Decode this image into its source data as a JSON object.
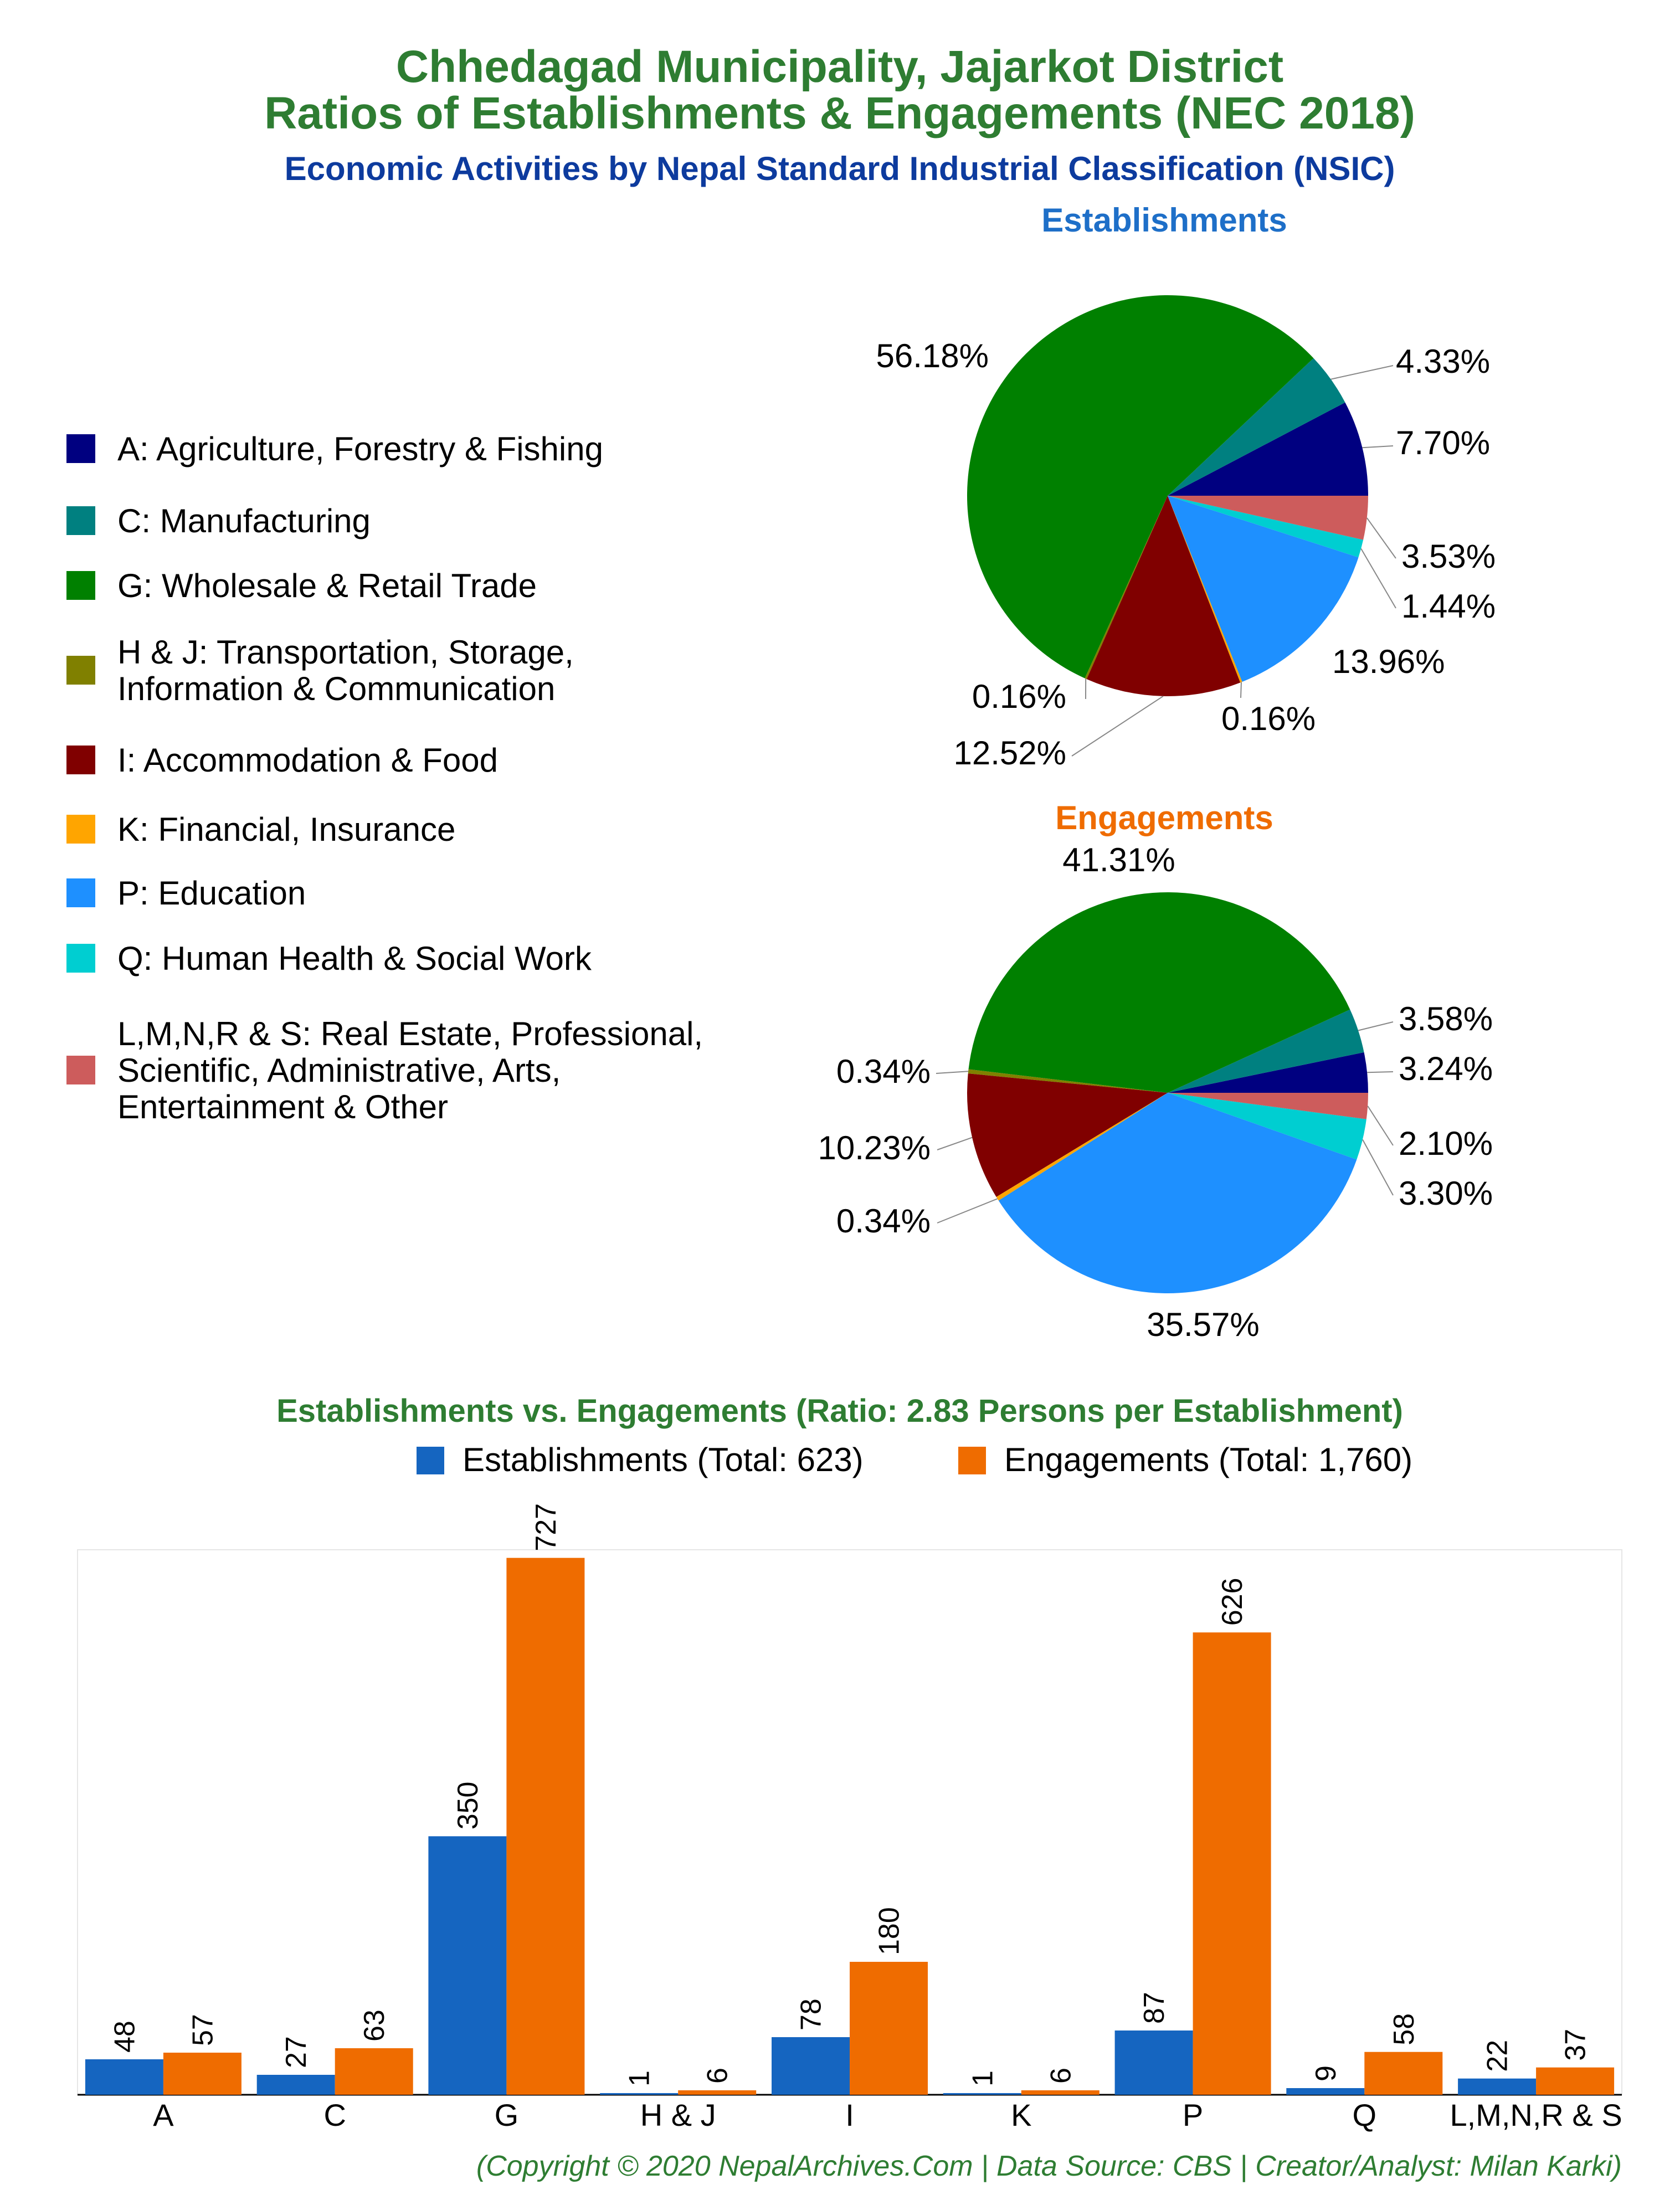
{
  "header": {
    "title_line1": "Chhedagad Municipality, Jajarkot District",
    "title_line2": "Ratios of Establishments & Engagements (NEC 2018)",
    "subtitle": "Economic Activities by Nepal Standard Industrial Classification (NSIC)"
  },
  "colors": {
    "title": "#2e7d32",
    "subtitle": "#0d3b9e",
    "establishments_title": "#1e6fc8",
    "engagements_title": "#ef6c00",
    "bar_establishments": "#1565c0",
    "bar_engagements": "#ef6c00"
  },
  "legend": {
    "items": [
      {
        "code": "A",
        "label": "A: Agriculture, Forestry & Fishing",
        "color": "#000080"
      },
      {
        "code": "C",
        "label": "C: Manufacturing",
        "color": "#008080"
      },
      {
        "code": "G",
        "label": "G: Wholesale & Retail Trade",
        "color": "#008000"
      },
      {
        "code": "H & J",
        "label": "H & J: Transportation, Storage,\nInformation & Communication",
        "color": "#808000"
      },
      {
        "code": "I",
        "label": "I: Accommodation & Food",
        "color": "#800000"
      },
      {
        "code": "K",
        "label": "K: Financial, Insurance",
        "color": "#ffa500"
      },
      {
        "code": "P",
        "label": "P: Education",
        "color": "#1e90ff"
      },
      {
        "code": "Q",
        "label": "Q: Human Health & Social Work",
        "color": "#00ced1"
      },
      {
        "code": "L,M,N,R & S",
        "label": "L,M,N,R & S: Real Estate, Professional,\nScientific, Administrative, Arts,\nEntertainment & Other",
        "color": "#cd5c5c"
      }
    ]
  },
  "footer": {
    "copyright": "(Copyright © 2020 NepalArchives.Com | Data Source: CBS | Creator/Analyst: Milan Karki)"
  },
  "chart_data": [
    {
      "type": "pie",
      "title": "Establishments",
      "categories": [
        "A",
        "C",
        "G",
        "H & J",
        "I",
        "K",
        "P",
        "Q",
        "L,M,N,R & S"
      ],
      "values": [
        7.7,
        4.33,
        56.18,
        0.16,
        12.52,
        0.16,
        13.96,
        1.44,
        3.53
      ],
      "labels": [
        "7.70%",
        "4.33%",
        "56.18%",
        "0.16%",
        "12.52%",
        "0.16%",
        "13.96%",
        "1.44%",
        "3.53%"
      ]
    },
    {
      "type": "pie",
      "title": "Engagements",
      "categories": [
        "A",
        "C",
        "G",
        "H & J",
        "I",
        "K",
        "P",
        "Q",
        "L,M,N,R & S"
      ],
      "values": [
        3.24,
        3.58,
        41.31,
        0.34,
        10.23,
        0.34,
        35.57,
        3.3,
        2.1
      ],
      "labels": [
        "3.24%",
        "3.58%",
        "41.31%",
        "0.34%",
        "10.23%",
        "0.34%",
        "35.57%",
        "3.30%",
        "2.10%"
      ]
    },
    {
      "type": "bar",
      "title": "Establishments vs. Engagements (Ratio: 2.83 Persons per Establishment)",
      "categories": [
        "A",
        "C",
        "G",
        "H & J",
        "I",
        "K",
        "P",
        "Q",
        "L,M,N,R & S"
      ],
      "series": [
        {
          "name": "Establishments (Total: 623)",
          "values": [
            48,
            27,
            350,
            1,
            78,
            1,
            87,
            9,
            22
          ]
        },
        {
          "name": "Engagements (Total: 1,760)",
          "values": [
            57,
            63,
            727,
            6,
            180,
            6,
            626,
            58,
            37
          ]
        }
      ],
      "ylim": [
        0,
        750
      ],
      "legend_position": "top",
      "grid": false
    }
  ]
}
